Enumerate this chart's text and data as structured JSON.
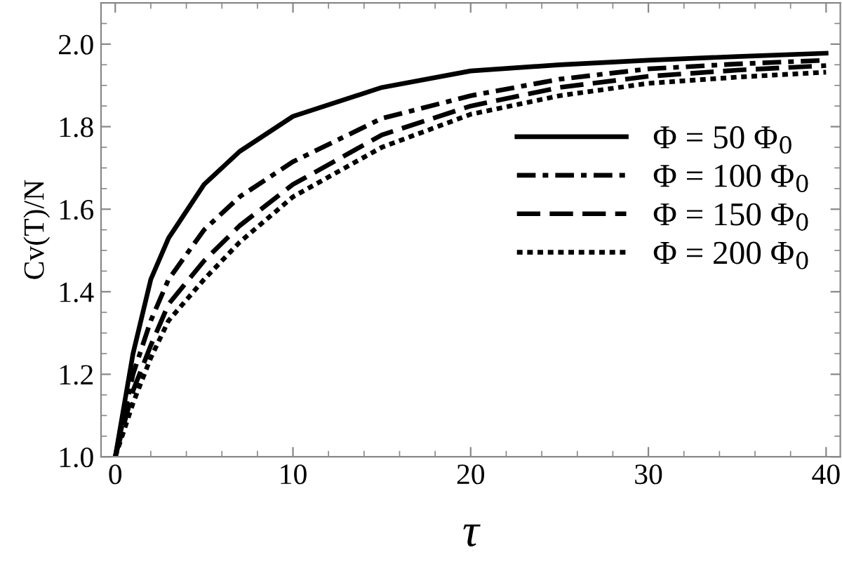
{
  "chart_data": {
    "type": "line",
    "xlabel": "τ",
    "ylabel": "Cv(T)/N",
    "x": [
      0,
      1,
      2,
      3,
      5,
      7,
      10,
      15,
      20,
      25,
      30,
      35,
      40
    ],
    "series": [
      {
        "name": "Φ = 50 Φ$_{0}$",
        "color": "#000000",
        "line_style": "solid",
        "values": [
          1.0,
          1.25,
          1.43,
          1.53,
          1.66,
          1.74,
          1.825,
          1.895,
          1.935,
          1.95,
          1.961,
          1.97,
          1.978
        ]
      },
      {
        "name": "Φ = 100 Φ$_{0}$",
        "color": "#000000",
        "line_style": "dashdot",
        "values": [
          1.0,
          1.2,
          1.33,
          1.43,
          1.55,
          1.63,
          1.715,
          1.82,
          1.875,
          1.915,
          1.94,
          1.952,
          1.961
        ]
      },
      {
        "name": "Φ = 150 Φ$_{0}$",
        "color": "#000000",
        "line_style": "dashed",
        "values": [
          1.0,
          1.16,
          1.27,
          1.37,
          1.475,
          1.56,
          1.66,
          1.78,
          1.85,
          1.895,
          1.922,
          1.937,
          1.948
        ]
      },
      {
        "name": "Φ = 200 Φ$_{0}$",
        "color": "#000000",
        "line_style": "dotted",
        "values": [
          1.0,
          1.13,
          1.24,
          1.33,
          1.43,
          1.52,
          1.63,
          1.75,
          1.83,
          1.875,
          1.905,
          1.92,
          1.932
        ]
      }
    ],
    "xlim": [
      -0.8,
      40.8
    ],
    "ylim": [
      1.0,
      2.1
    ],
    "xticks": [
      0,
      10,
      20,
      30,
      40
    ],
    "yticks": [
      {
        "value": 1.0,
        "label": "1.0"
      },
      {
        "value": 1.2,
        "label": "1.2"
      },
      {
        "value": 1.4,
        "label": "1.4"
      },
      {
        "value": 1.6,
        "label": "1.6"
      },
      {
        "value": 1.8,
        "label": "1.8"
      },
      {
        "value": 2.0,
        "label": "2.0"
      }
    ],
    "grid": false,
    "legend": "right",
    "marker": "none"
  }
}
